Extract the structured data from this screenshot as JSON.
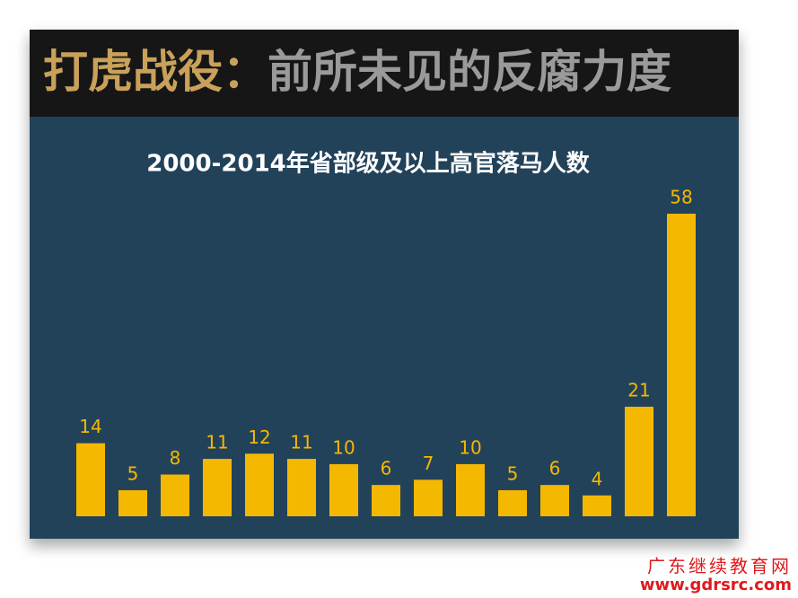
{
  "header": {
    "title_lead": "打虎战役：",
    "title_main": "前所未见的反腐力度"
  },
  "chart_data": {
    "type": "bar",
    "title": "2000-2014年省部级及以上高官落马人数",
    "categories": [
      null,
      null,
      null,
      null,
      null,
      null,
      null,
      null,
      null,
      null,
      null,
      null,
      null,
      null,
      null
    ],
    "values": [
      14,
      5,
      8,
      11,
      12,
      11,
      10,
      6,
      7,
      10,
      5,
      6,
      4,
      21,
      58
    ],
    "color": "#f5b800"
  },
  "watermark": {
    "name": "广东继续教育网",
    "url": "www.gdrsrc.com"
  }
}
